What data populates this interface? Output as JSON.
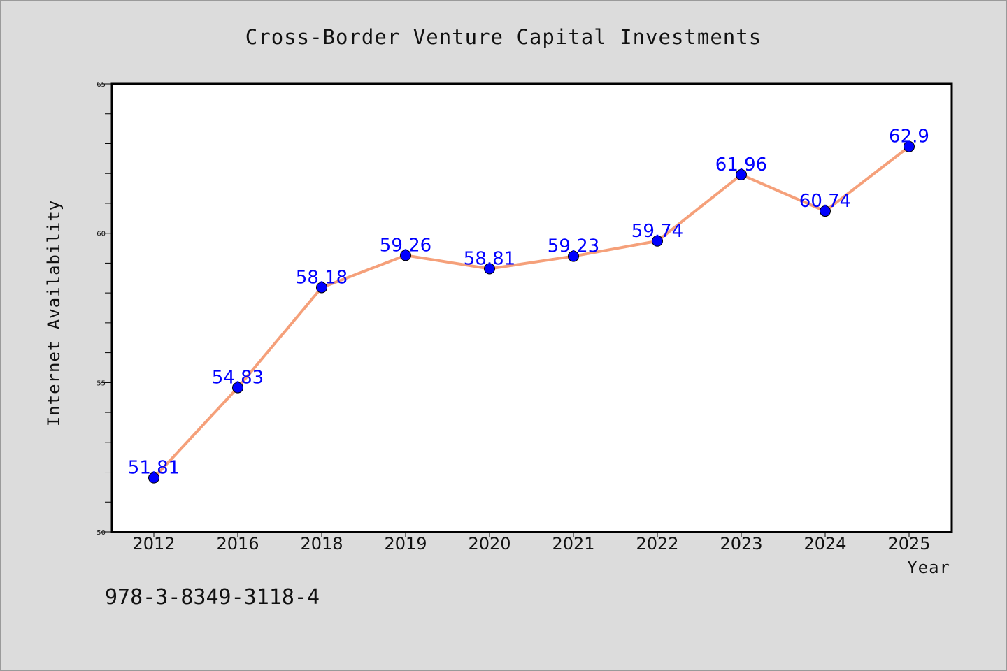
{
  "chart_data": {
    "type": "line",
    "title": "Cross-Border Venture Capital Investments",
    "xlabel": "Year",
    "ylabel": "Internet Availability",
    "categories": [
      "2012",
      "2016",
      "2018",
      "2019",
      "2020",
      "2021",
      "2022",
      "2023",
      "2024",
      "2025"
    ],
    "values": [
      51.81,
      54.83,
      58.18,
      59.26,
      58.81,
      59.23,
      59.74,
      61.96,
      60.74,
      62.9
    ],
    "data_labels": [
      "51.81",
      "54.83",
      "58.18",
      "59.26",
      "58.81",
      "59.23",
      "59.74",
      "61.96",
      "60.74",
      "62.9"
    ],
    "ylim": [
      50,
      65
    ],
    "yticks": [
      50,
      55,
      60,
      65
    ],
    "ytick_labels": [
      "50",
      "55",
      "60",
      "65"
    ],
    "grid": false,
    "line_color": "#f5a07a",
    "marker_color": "#0000ff",
    "label_color": "#0000ff"
  },
  "footer": {
    "isbn": "978-3-8349-3118-4"
  }
}
